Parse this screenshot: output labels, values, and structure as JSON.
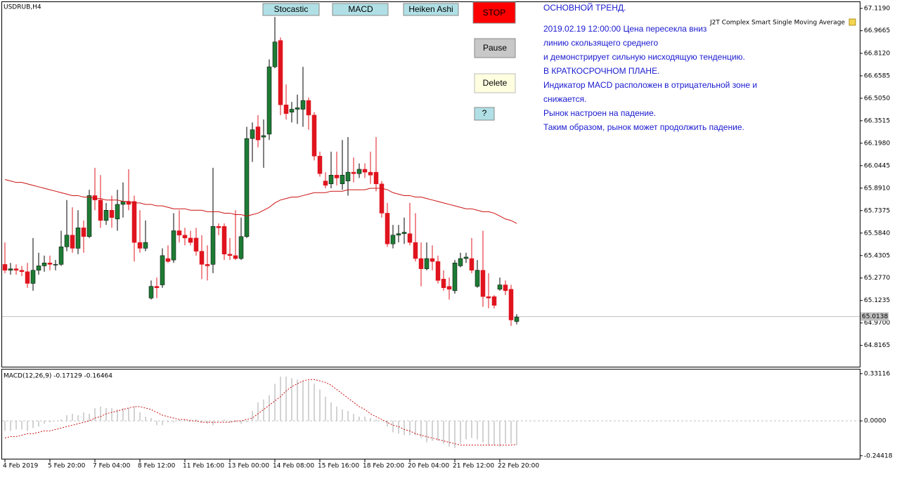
{
  "header": {
    "indicator": "J2T Complex Smart Single Moving Average"
  },
  "buttons": [
    "Stocastic",
    "MACD",
    "Heiken Ashi",
    "STOP",
    "Pause",
    "Delete",
    "?"
  ],
  "info": {
    "lines": [
      "ОСНОВНОЙ ТРЕНД.",
      "2019.02.19 12:00:00 Цена  пересекла  вниз",
      " линию скользящего среднего",
      "и демонстрирует сильную нисходящую тенденцию.",
      "В КРАТКОСРОЧНОМ ПЛАНЕ.",
      "Индикатор MACD расположен в отрицательной зоне и",
      "снижается.",
      "Рынок настроен на падение.",
      "Таким образом, рынок может продолжить падение."
    ]
  },
  "chart_data": [
    {
      "type": "candlestick",
      "title": "USDRUB,H4",
      "up_color": "#1e7b34",
      "down_color": "#e0141e",
      "categories": [
        "4 Feb 2019",
        null,
        null,
        null,
        null,
        null,
        null,
        null,
        "5 Feb 20:00",
        null,
        null,
        null,
        null,
        null,
        null,
        null,
        "7 Feb 04:00",
        null,
        null,
        null,
        null,
        null,
        null,
        null,
        "8 Feb 12:00",
        null,
        null,
        null,
        null,
        null,
        null,
        null,
        "11 Feb 16:00",
        null,
        null,
        null,
        null,
        null,
        null,
        null,
        "13 Feb 00:00",
        null,
        null,
        null,
        null,
        null,
        null,
        null,
        "14 Feb 08:00",
        null,
        null,
        null,
        null,
        null,
        null,
        null,
        "15 Feb 16:00",
        null,
        null,
        null,
        null,
        null,
        null,
        null,
        "18 Feb 20:00",
        null,
        null,
        null,
        null,
        null,
        null,
        null,
        "20 Feb 04:00",
        null,
        null,
        null,
        null,
        null,
        null,
        null,
        "21 Feb 12:00",
        null,
        null,
        null,
        null,
        null,
        null,
        null,
        "22 Feb 20:00",
        null,
        null,
        null
      ],
      "open": [
        65.37,
        65.33,
        65.34,
        65.33,
        65.32,
        65.24,
        65.33,
        65.36,
        65.38,
        65.37,
        65.37,
        65.49,
        65.57,
        65.48,
        65.62,
        65.56,
        65.84,
        65.81,
        65.67,
        65.74,
        65.68,
        65.78,
        65.8,
        65.8,
        65.52,
        65.48,
        65.14,
        65.22,
        65.23,
        65.41,
        65.4,
        65.6,
        65.57,
        65.55,
        65.55,
        65.46,
        65.37,
        65.37,
        65.63,
        65.63,
        65.44,
        65.43,
        65.41,
        65.56,
        66.23,
        66.31,
        66.24,
        66.26,
        66.72,
        66.9,
        66.46,
        66.41,
        66.43,
        66.43,
        66.49,
        66.39,
        66.11,
        65.94,
        65.92,
        65.98,
        65.92,
        65.94,
        66.0,
        65.99,
        66.02,
        66.0,
        66.0,
        65.92,
        65.72,
        65.51,
        65.57,
        65.58,
        65.58,
        65.52,
        65.41,
        65.34,
        65.41,
        65.39,
        65.27,
        65.22,
        65.19,
        65.36,
        65.41,
        65.41,
        65.22,
        65.33,
        65.15,
        65.15,
        65.2,
        65.23,
        65.2,
        64.98
      ],
      "high": [
        65.52,
        65.38,
        65.37,
        65.36,
        65.38,
        65.55,
        65.45,
        65.43,
        65.43,
        65.4,
        65.6,
        65.81,
        65.76,
        65.74,
        65.67,
        65.88,
        66.03,
        65.98,
        65.79,
        65.84,
        65.88,
        65.93,
        66.02,
        65.84,
        65.74,
        65.67,
        65.26,
        65.28,
        65.48,
        65.5,
        65.72,
        65.74,
        65.62,
        65.6,
        65.62,
        65.57,
        65.5,
        66.03,
        65.65,
        65.65,
        65.55,
        65.74,
        65.69,
        66.31,
        66.34,
        66.39,
        66.36,
        66.77,
        67.06,
        66.92,
        66.6,
        66.48,
        66.53,
        66.72,
        66.51,
        66.41,
        66.14,
        66.0,
        66.14,
        66.14,
        66.22,
        66.24,
        66.1,
        66.06,
        66.06,
        66.14,
        66.24,
        65.94,
        65.79,
        65.64,
        65.64,
        65.69,
        65.79,
        65.72,
        65.52,
        65.52,
        65.5,
        65.43,
        65.33,
        65.28,
        65.4,
        65.45,
        65.45,
        65.55,
        65.4,
        65.6,
        65.31,
        65.16,
        65.28,
        65.26,
        65.23,
        65.03
      ],
      "low": [
        65.31,
        65.3,
        65.3,
        65.29,
        65.21,
        65.19,
        65.3,
        65.32,
        65.33,
        65.33,
        65.36,
        65.46,
        65.45,
        65.44,
        65.45,
        65.55,
        65.74,
        65.62,
        65.64,
        65.62,
        65.6,
        65.69,
        65.74,
        65.39,
        65.45,
        65.46,
        65.13,
        65.14,
        65.21,
        65.38,
        65.38,
        65.52,
        65.5,
        65.5,
        65.43,
        65.27,
        65.26,
        65.31,
        65.57,
        65.4,
        65.4,
        65.4,
        65.4,
        65.55,
        66.07,
        66.17,
        66.03,
        66.22,
        66.71,
        66.39,
        66.36,
        66.34,
        66.33,
        66.31,
        66.29,
        66.08,
        65.97,
        65.89,
        65.89,
        65.91,
        65.88,
        65.84,
        65.93,
        65.96,
        65.96,
        65.92,
        65.87,
        65.69,
        65.49,
        65.48,
        65.52,
        65.51,
        65.5,
        65.39,
        65.22,
        65.33,
        65.33,
        65.24,
        65.19,
        65.13,
        65.17,
        65.35,
        65.38,
        65.31,
        65.21,
        65.08,
        65.07,
        65.07,
        65.19,
        65.16,
        64.95,
        64.96
      ],
      "close": [
        65.33,
        65.34,
        65.33,
        65.32,
        65.24,
        65.33,
        65.36,
        65.38,
        65.37,
        65.37,
        65.49,
        65.57,
        65.48,
        65.62,
        65.56,
        65.84,
        65.81,
        65.67,
        65.74,
        65.69,
        65.78,
        65.8,
        65.78,
        65.52,
        65.48,
        65.52,
        65.22,
        65.21,
        65.43,
        65.39,
        65.6,
        65.57,
        65.55,
        65.52,
        65.46,
        65.37,
        65.36,
        65.63,
        65.62,
        65.44,
        65.43,
        65.41,
        65.56,
        66.23,
        66.29,
        66.22,
        66.25,
        66.72,
        66.89,
        66.46,
        66.4,
        66.43,
        66.44,
        66.49,
        66.39,
        66.11,
        65.99,
        65.91,
        65.98,
        65.96,
        65.98,
        66.0,
        65.99,
        66.02,
        66.0,
        65.98,
        65.92,
        65.72,
        65.51,
        65.57,
        65.58,
        65.59,
        65.52,
        65.41,
        65.34,
        65.41,
        65.39,
        65.26,
        65.21,
        65.2,
        65.38,
        65.41,
        65.42,
        65.33,
        65.33,
        65.15,
        65.14,
        65.09,
        65.23,
        65.19,
        64.99,
        65.01
      ],
      "series": [
        {
          "name": "J2T Complex Smart Single Moving Average",
          "color": "#cc1111",
          "values": [
            65.95,
            65.94,
            65.93,
            65.93,
            65.92,
            65.91,
            65.9,
            65.89,
            65.88,
            65.87,
            65.86,
            65.85,
            65.84,
            65.84,
            65.83,
            65.83,
            65.82,
            65.82,
            65.81,
            65.81,
            65.81,
            65.8,
            65.8,
            65.79,
            65.79,
            65.78,
            65.78,
            65.77,
            65.77,
            65.76,
            65.75,
            65.75,
            65.75,
            65.74,
            65.74,
            65.74,
            65.73,
            65.73,
            65.73,
            65.72,
            65.72,
            65.71,
            65.71,
            65.7,
            65.71,
            65.72,
            65.74,
            65.76,
            65.79,
            65.81,
            65.82,
            65.83,
            65.83,
            65.84,
            65.85,
            65.86,
            65.86,
            65.86,
            65.87,
            65.87,
            65.87,
            65.88,
            65.88,
            65.88,
            65.88,
            65.89,
            65.89,
            65.89,
            65.88,
            65.86,
            65.85,
            65.84,
            65.84,
            65.83,
            65.83,
            65.82,
            65.81,
            65.8,
            65.79,
            65.78,
            65.77,
            65.76,
            65.75,
            65.75,
            65.74,
            65.73,
            65.73,
            65.72,
            65.7,
            65.68,
            65.67,
            65.65
          ]
        }
      ],
      "last_price": {
        "value": 65.0138,
        "label": "65.0138"
      },
      "ylim": [
        64.671,
        67.162
      ],
      "yticks": [
        {
          "value": 67.119,
          "label": "67.1190"
        },
        {
          "value": 66.9665,
          "label": "66.9665"
        },
        {
          "value": 66.812,
          "label": "66.8120"
        },
        {
          "value": 66.6585,
          "label": "66.6585"
        },
        {
          "value": 66.505,
          "label": "66.5050"
        },
        {
          "value": 66.3515,
          "label": "66.3515"
        },
        {
          "value": 66.198,
          "label": "66.1980"
        },
        {
          "value": 66.0445,
          "label": "66.0445"
        },
        {
          "value": 65.891,
          "label": "65.8910"
        },
        {
          "value": 65.7375,
          "label": "65.7375"
        },
        {
          "value": 65.584,
          "label": "65.5840"
        },
        {
          "value": 65.4305,
          "label": "65.4305"
        },
        {
          "value": 65.277,
          "label": "65.2770"
        },
        {
          "value": 65.1235,
          "label": "65.1235"
        },
        {
          "value": 64.97,
          "label": "64.9700"
        },
        {
          "value": 64.8165,
          "label": "64.8165"
        }
      ]
    },
    {
      "type": "macd",
      "title": "MACD(12,26,9) -0.17129 -0.16464",
      "histogram_color": "#c4c4c4",
      "signal_color": "#cc1111",
      "histogram": [
        -0.07,
        -0.07,
        -0.06,
        -0.06,
        -0.07,
        -0.05,
        -0.04,
        -0.02,
        -0.01,
        0,
        0.01,
        0.04,
        0.05,
        0.04,
        0.06,
        0.05,
        0.09,
        0.1,
        0.09,
        0.09,
        0.08,
        0.09,
        0.09,
        0.1,
        0.06,
        0.03,
        0.02,
        -0.03,
        -0.03,
        -0.01,
        -0.01,
        0.01,
        0.01,
        0.01,
        0.01,
        -0.01,
        -0.02,
        -0.03,
        0,
        0.01,
        -0.01,
        -0.01,
        -0.02,
        -0.01,
        0.07,
        0.13,
        0.15,
        0.18,
        0.26,
        0.31,
        0.31,
        0.3,
        0.29,
        0.28,
        0.28,
        0.26,
        0.22,
        0.17,
        0.13,
        0.1,
        0.08,
        0.07,
        0.05,
        0.03,
        0.03,
        0.02,
        0.01,
        0,
        -0.04,
        -0.08,
        -0.09,
        -0.1,
        -0.1,
        -0.1,
        -0.12,
        -0.15,
        -0.14,
        -0.14,
        -0.16,
        -0.18,
        -0.19,
        -0.16,
        -0.13,
        -0.12,
        -0.13,
        -0.15,
        -0.17,
        -0.17,
        -0.18,
        -0.16,
        -0.16,
        -0.17129
      ],
      "signal": [
        -0.12,
        -0.11,
        -0.11,
        -0.1,
        -0.09,
        -0.09,
        -0.08,
        -0.07,
        -0.07,
        -0.06,
        -0.05,
        -0.04,
        -0.03,
        -0.02,
        -0.01,
        0,
        0.02,
        0.03,
        0.05,
        0.06,
        0.07,
        0.08,
        0.09,
        0.1,
        0.1,
        0.09,
        0.08,
        0.06,
        0.04,
        0.03,
        0.02,
        0.01,
        0.01,
        0,
        0,
        -0.01,
        -0.01,
        -0.01,
        -0.01,
        -0.01,
        -0.01,
        0,
        0,
        0.01,
        0.02,
        0.05,
        0.08,
        0.11,
        0.14,
        0.17,
        0.21,
        0.24,
        0.26,
        0.28,
        0.29,
        0.29,
        0.28,
        0.27,
        0.25,
        0.22,
        0.19,
        0.16,
        0.13,
        0.1,
        0.08,
        0.05,
        0.03,
        0.01,
        -0.01,
        -0.03,
        -0.04,
        -0.06,
        -0.07,
        -0.09,
        -0.1,
        -0.11,
        -0.12,
        -0.13,
        -0.14,
        -0.15,
        -0.16,
        -0.17,
        -0.17,
        -0.17,
        -0.17,
        -0.17,
        -0.17,
        -0.17,
        -0.17,
        -0.17,
        -0.17,
        -0.16464
      ],
      "ylim": [
        -0.27,
        0.36
      ],
      "yticks": [
        0.33116,
        {
          "value": 0,
          "label": "0.0000"
        },
        -0.24418
      ]
    }
  ]
}
